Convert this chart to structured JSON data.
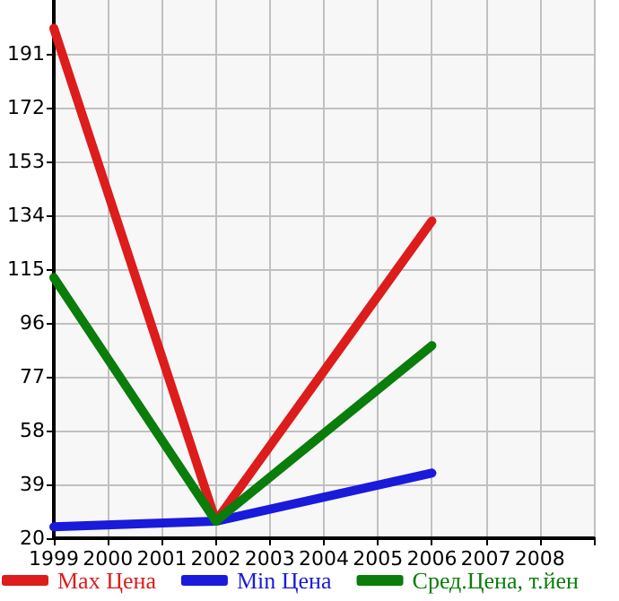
{
  "chart_data": {
    "type": "line",
    "x": [
      1999,
      2002,
      2006
    ],
    "series": [
      {
        "name": "Max Цена",
        "color": "#dd1c1c",
        "values": [
          200,
          26,
          132
        ]
      },
      {
        "name": "Min Цена",
        "color": "#1a1adb",
        "values": [
          24,
          26,
          43
        ]
      },
      {
        "name": "Сред.Цена, т.йен",
        "color": "#0a7d0a",
        "values": [
          112,
          26,
          88
        ]
      }
    ],
    "xlim": [
      1999,
      2009
    ],
    "xticks": [
      1999,
      2000,
      2001,
      2002,
      2003,
      2004,
      2005,
      2006,
      2007,
      2008,
      {
        "value": 2009,
        "label": null
      }
    ],
    "ylim": [
      20,
      210
    ],
    "yticks": [
      20,
      39,
      58,
      77,
      96,
      115,
      134,
      153,
      172,
      191
    ],
    "grid": true,
    "legend": "bottom",
    "marker": "none",
    "line_style": "solid"
  }
}
